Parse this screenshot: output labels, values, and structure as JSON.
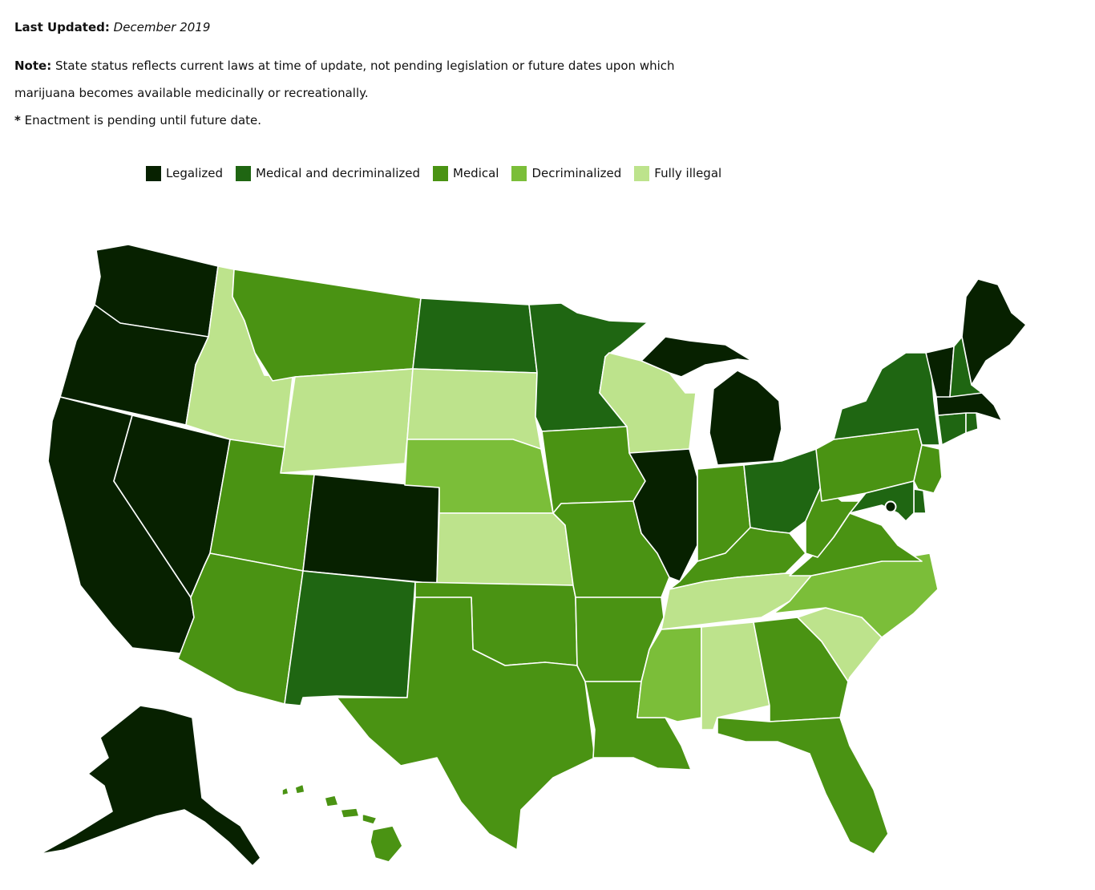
{
  "header": {
    "last_updated_label": "Last Updated:",
    "last_updated_value": "December 2019",
    "note_label": "Note:",
    "note_text_1": "State status reflects current laws at time of update, not pending legislation or future dates upon which",
    "note_text_2": "marijuana becomes available medicinally or recreationally.",
    "asterisk_mark": "*",
    "asterisk_text": "Enactment is pending until future date."
  },
  "legend": [
    {
      "label": "Legalized",
      "color": "#072100"
    },
    {
      "label": "Medical and decriminalized",
      "color": "#1f6612"
    },
    {
      "label": "Medical",
      "color": "#4a9313"
    },
    {
      "label": "Decriminalized",
      "color": "#7bbe39"
    },
    {
      "label": "Fully illegal",
      "color": "#bde38c"
    }
  ],
  "states": {
    "WA": "Legalized",
    "OR": "Legalized",
    "CA": "Legalized",
    "NV": "Legalized",
    "CO": "Legalized",
    "AK": "Legalized",
    "MI": "Legalized",
    "ME": "Legalized",
    "VT": "Legalized",
    "MA": "Legalized",
    "IL": "Legalized",
    "ND": "Medical and decriminalized",
    "MN": "Medical and decriminalized",
    "NM": "Medical and decriminalized",
    "OH": "Medical and decriminalized",
    "NY": "Medical and decriminalized",
    "NH": "Medical and decriminalized",
    "CT": "Medical and decriminalized",
    "RI": "Medical and decriminalized",
    "MD": "Medical and decriminalized",
    "DE": "Medical and decriminalized",
    "MT": "Medical",
    "UT": "Medical",
    "AZ": "Medical",
    "OK": "Medical",
    "TX": "Medical",
    "IA": "Medical",
    "MO": "Medical",
    "AR": "Medical",
    "IN": "Medical",
    "KY": "Medical",
    "WV": "Medical",
    "VA": "Medical",
    "PA": "Medical",
    "NJ": "Medical",
    "GA": "Medical",
    "FL": "Medical",
    "LA": "Medical",
    "HI": "Medical",
    "NE": "Decriminalized",
    "MS": "Decriminalized",
    "NC": "Decriminalized",
    "ID": "Fully illegal",
    "WY": "Fully illegal",
    "SD": "Fully illegal",
    "KS": "Fully illegal",
    "WI": "Fully illegal",
    "TN": "Fully illegal",
    "AL": "Fully illegal",
    "SC": "Fully illegal"
  }
}
